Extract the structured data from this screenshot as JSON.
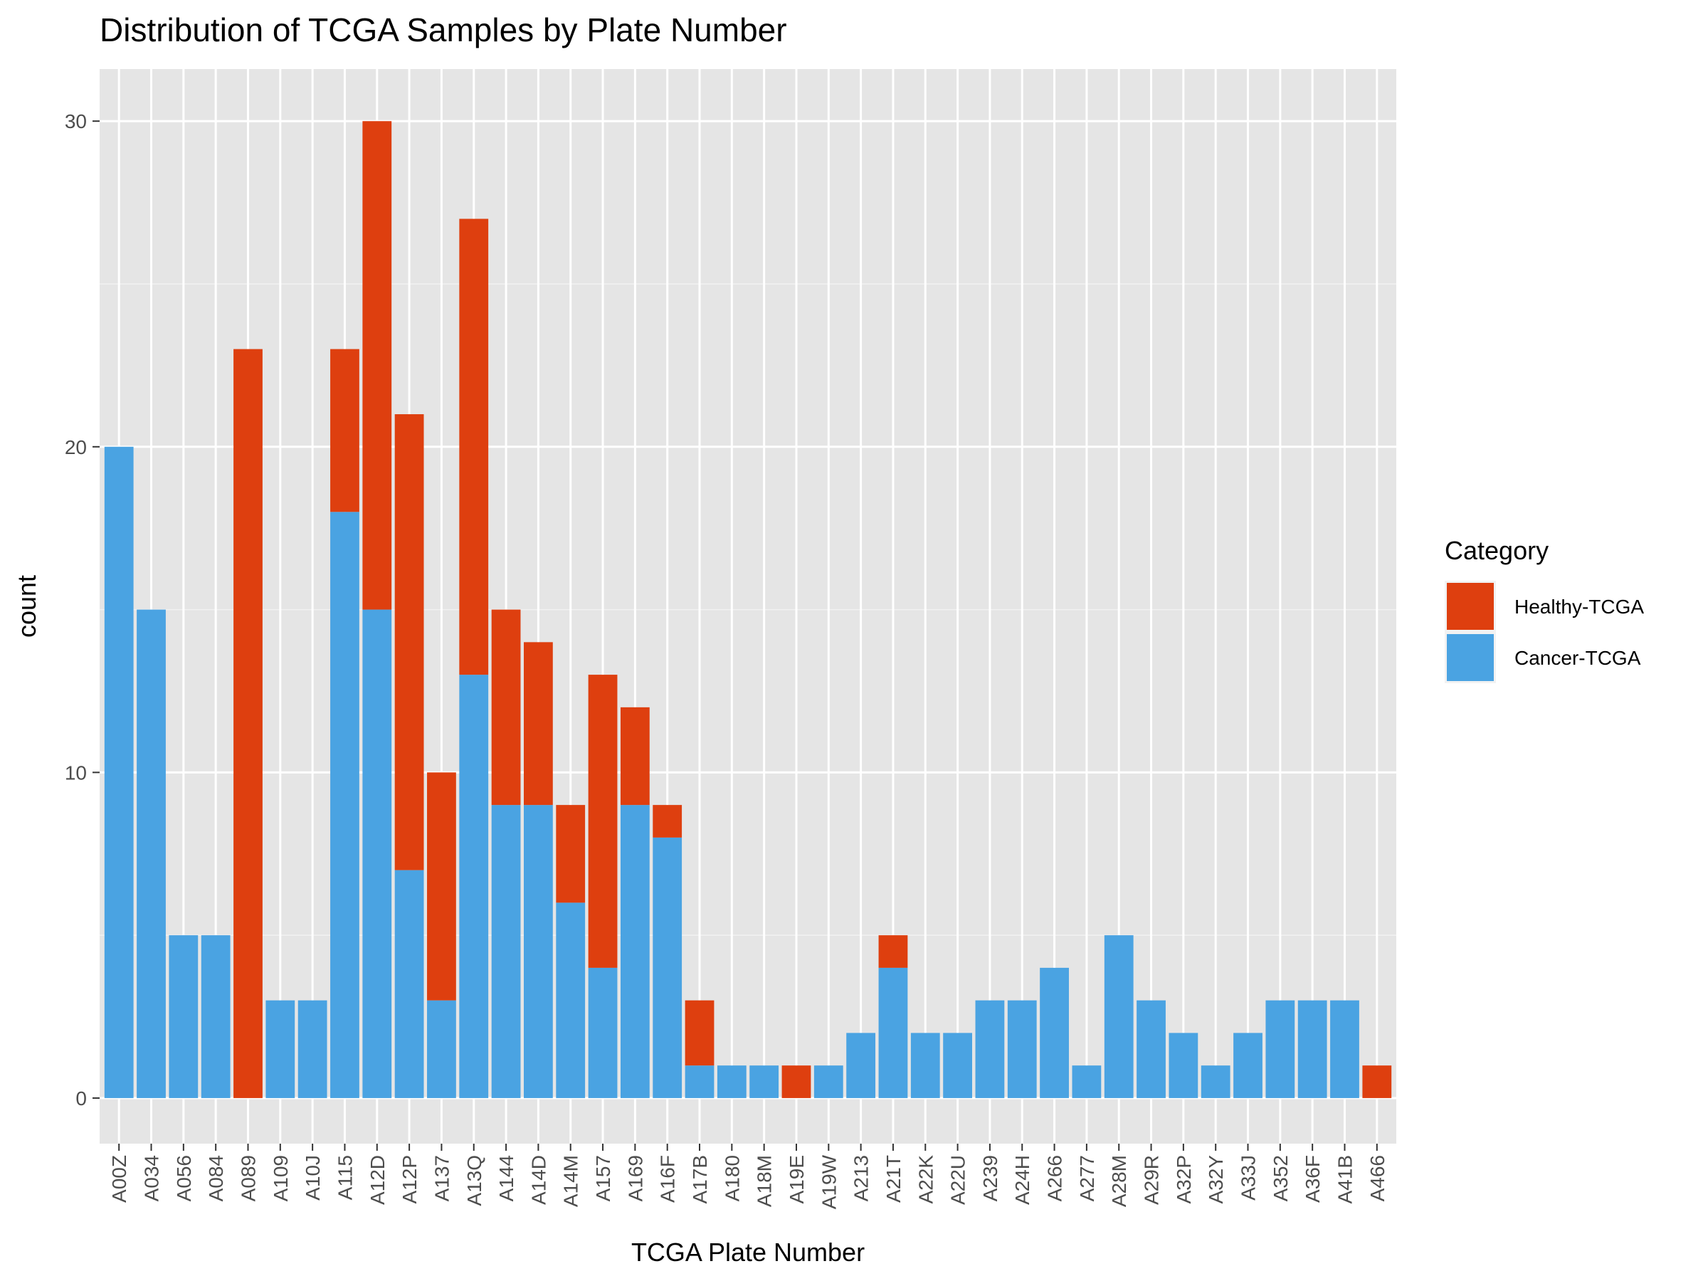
{
  "chart_data": {
    "type": "bar",
    "stacked": true,
    "title": "Distribution of TCGA Samples by Plate Number",
    "xlabel": "TCGA Plate Number",
    "ylabel": "count",
    "ylim": [
      -1.4,
      31.6
    ],
    "yticks": [
      0,
      10,
      20,
      30
    ],
    "grid": true,
    "legend": {
      "title": "Category",
      "placement": "right",
      "entries": [
        "Healthy-TCGA",
        "Cancer-TCGA"
      ]
    },
    "categories": [
      "A00Z",
      "A034",
      "A056",
      "A084",
      "A089",
      "A109",
      "A10J",
      "A115",
      "A12D",
      "A12P",
      "A137",
      "A13Q",
      "A144",
      "A14D",
      "A14M",
      "A157",
      "A169",
      "A16F",
      "A17B",
      "A180",
      "A18M",
      "A19E",
      "A19W",
      "A213",
      "A21T",
      "A22K",
      "A22U",
      "A239",
      "A24H",
      "A266",
      "A277",
      "A28M",
      "A29R",
      "A32P",
      "A32Y",
      "A33J",
      "A352",
      "A36F",
      "A41B",
      "A466"
    ],
    "series": [
      {
        "name": "Cancer-TCGA",
        "color": "#4aa3e2",
        "values": [
          20,
          15,
          5,
          5,
          0,
          3,
          3,
          18,
          15,
          7,
          3,
          13,
          9,
          9,
          6,
          4,
          9,
          8,
          1,
          1,
          1,
          0,
          1,
          2,
          4,
          2,
          2,
          3,
          3,
          4,
          1,
          5,
          3,
          2,
          1,
          2,
          3,
          3,
          3,
          0
        ]
      },
      {
        "name": "Healthy-TCGA",
        "color": "#de3f0f",
        "values": [
          0,
          0,
          0,
          0,
          23,
          0,
          0,
          5,
          15,
          14,
          7,
          14,
          6,
          5,
          3,
          9,
          3,
          1,
          2,
          0,
          0,
          1,
          0,
          0,
          1,
          0,
          0,
          0,
          0,
          0,
          0,
          0,
          0,
          0,
          0,
          0,
          0,
          0,
          0,
          1
        ]
      }
    ]
  }
}
